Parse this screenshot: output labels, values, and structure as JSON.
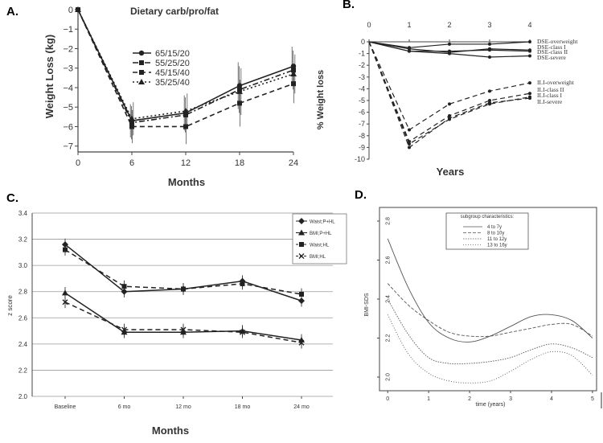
{
  "panels": {
    "a": "A.",
    "b": "B.",
    "c": "C.",
    "d": "D."
  },
  "chart_data": [
    {
      "id": "A",
      "type": "line",
      "title": "",
      "xlabel": "Months",
      "ylabel": "Weight Loss (kg)",
      "x": [
        0,
        6,
        12,
        18,
        24
      ],
      "xticks": [
        "0",
        "6",
        "12",
        "18",
        "24"
      ],
      "yticks": [
        "0",
        "−1",
        "−2",
        "−3",
        "−4",
        "−5",
        "−6",
        "−7"
      ],
      "xlim": [
        0,
        24
      ],
      "ylim": [
        -7.3,
        0
      ],
      "legend_title": "Dietary carb/pro/fat",
      "legend_position": "center-right",
      "series": [
        {
          "name": "65/15/20",
          "style": "solid",
          "marker": "circle",
          "values": [
            0,
            -5.7,
            -5.3,
            -3.9,
            -2.9
          ]
        },
        {
          "name": "55/25/20",
          "style": "dashdot",
          "marker": "square",
          "values": [
            0,
            -5.8,
            -5.4,
            -4.1,
            -3.1
          ]
        },
        {
          "name": "45/15/40",
          "style": "dashed",
          "marker": "square",
          "values": [
            0,
            -6.0,
            -6.0,
            -4.8,
            -3.8
          ]
        },
        {
          "name": "35/25/40",
          "style": "dotted",
          "marker": "triangle",
          "values": [
            0,
            -5.6,
            -5.2,
            -4.2,
            -3.3
          ]
        }
      ]
    },
    {
      "id": "B",
      "type": "line",
      "title": "",
      "xlabel": "Years",
      "ylabel": "% Weight loss",
      "x": [
        0,
        1,
        2,
        3,
        4
      ],
      "xticks": [
        "0",
        "1",
        "2",
        "3",
        "4"
      ],
      "yticks": [
        "0",
        "-1",
        "-2",
        "-3",
        "-4",
        "-5",
        "-6",
        "-7",
        "-8",
        "-9",
        "-10"
      ],
      "xlim": [
        0,
        4
      ],
      "ylim": [
        -10,
        0
      ],
      "legend_position": "right (end labels)",
      "series": [
        {
          "name": "DSE-overweight",
          "style": "solid",
          "values": [
            0,
            -0.5,
            -0.2,
            -0.2,
            0
          ]
        },
        {
          "name": "DSE-class I",
          "style": "solid",
          "values": [
            0,
            -0.6,
            -0.9,
            -0.6,
            -0.7
          ]
        },
        {
          "name": "DSE-class II",
          "style": "solid",
          "values": [
            0,
            -0.8,
            -0.8,
            -0.7,
            -0.8
          ]
        },
        {
          "name": "DSE-severe",
          "style": "solid",
          "values": [
            0,
            -0.8,
            -1.0,
            -1.3,
            -1.2
          ]
        },
        {
          "name": "ILI-overweight",
          "style": "dashed",
          "values": [
            0,
            -7.5,
            -5.3,
            -4.2,
            -3.5
          ]
        },
        {
          "name": "ILI-class II",
          "style": "dashed",
          "values": [
            0,
            -8.5,
            -6.3,
            -5.0,
            -4.4
          ]
        },
        {
          "name": "ILI-class I",
          "style": "dashed",
          "values": [
            0,
            -8.7,
            -6.6,
            -5.3,
            -4.7
          ]
        },
        {
          "name": "ILI-severe",
          "style": "dashed",
          "values": [
            0,
            -9.0,
            -6.5,
            -5.2,
            -4.8
          ]
        }
      ]
    },
    {
      "id": "C",
      "type": "line",
      "title": "",
      "xlabel": "Months",
      "ylabel": "z score",
      "categories": [
        "Baseline",
        "6 mo",
        "12 mo",
        "18 mo",
        "24 mo"
      ],
      "yticks": [
        "2.0",
        "2.2",
        "2.4",
        "2.6",
        "2.8",
        "3.0",
        "3.2",
        "3.4"
      ],
      "ylim": [
        2.0,
        3.4
      ],
      "grid": true,
      "legend_position": "top-right",
      "series": [
        {
          "name": "Waist;P+HL",
          "style": "solid",
          "marker": "diamond",
          "values": [
            3.16,
            2.8,
            2.82,
            2.88,
            2.73
          ]
        },
        {
          "name": "BMI;P+HL",
          "style": "solid",
          "marker": "triangle",
          "values": [
            2.79,
            2.49,
            2.49,
            2.5,
            2.43
          ]
        },
        {
          "name": "Waist;HL",
          "style": "dashed",
          "marker": "square",
          "values": [
            3.12,
            2.84,
            2.82,
            2.86,
            2.78
          ]
        },
        {
          "name": "BMI;HL",
          "style": "dashed",
          "marker": "x",
          "values": [
            2.72,
            2.51,
            2.51,
            2.49,
            2.41
          ]
        }
      ]
    },
    {
      "id": "D",
      "type": "line",
      "title": "",
      "xlabel": "time (years)",
      "ylabel": "BMI-SDS",
      "xticks": [
        "0",
        "1",
        "2",
        "3",
        "4",
        "5"
      ],
      "yticks": [
        "2.0",
        "2.2",
        "2.4",
        "2.6",
        "2.8"
      ],
      "xlim": [
        -0.2,
        5.1
      ],
      "ylim": [
        1.93,
        2.87
      ],
      "legend_title": "subgroup characteristics:",
      "legend_position": "top-center",
      "x": [
        0,
        0.5,
        1,
        1.5,
        2,
        2.5,
        3,
        3.5,
        4,
        4.5,
        5
      ],
      "series": [
        {
          "name": "4 to 7y",
          "style": "solid",
          "values": [
            2.71,
            2.46,
            2.28,
            2.2,
            2.18,
            2.21,
            2.26,
            2.31,
            2.32,
            2.29,
            2.2
          ]
        },
        {
          "name": "8 to 10y",
          "style": "dashed",
          "values": [
            2.48,
            2.37,
            2.29,
            2.23,
            2.21,
            2.21,
            2.23,
            2.25,
            2.27,
            2.27,
            2.21
          ]
        },
        {
          "name": "11 to 12y",
          "style": "dotted",
          "values": [
            2.4,
            2.22,
            2.1,
            2.07,
            2.07,
            2.08,
            2.1,
            2.14,
            2.17,
            2.15,
            2.1
          ]
        },
        {
          "name": "13 to 16y",
          "style": "dashdot",
          "values": [
            2.32,
            2.12,
            2.02,
            1.98,
            1.97,
            1.98,
            2.03,
            2.09,
            2.13,
            2.11,
            2.01
          ]
        }
      ]
    }
  ]
}
